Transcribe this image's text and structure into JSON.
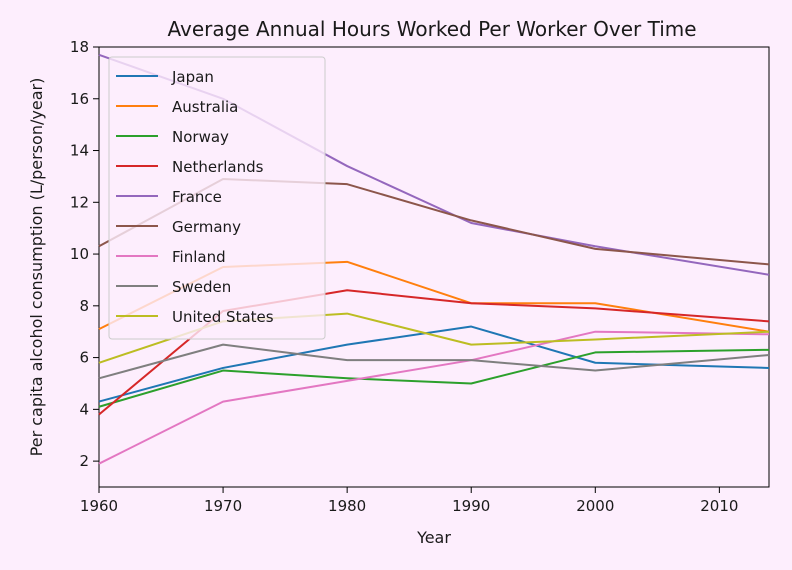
{
  "chart_data": {
    "type": "line",
    "title": "Average Annual Hours Worked Per Worker Over Time",
    "xlabel": "Year",
    "ylabel": "Per capita alcohol consumption (L/person/year)",
    "xlim": [
      1960,
      2014
    ],
    "ylim": [
      1,
      18
    ],
    "xticks": [
      1960,
      1970,
      1980,
      1990,
      2000,
      2010
    ],
    "yticks": [
      2,
      4,
      6,
      8,
      10,
      12,
      14,
      16,
      18
    ],
    "grid": false,
    "legend_position": "upper-left",
    "x": [
      1960,
      1970,
      1980,
      1990,
      2000,
      2014
    ],
    "series": [
      {
        "name": "Japan",
        "color": "#1f77b4",
        "values": [
          4.3,
          5.6,
          6.5,
          7.2,
          5.8,
          5.6
        ]
      },
      {
        "name": "Australia",
        "color": "#ff7f0e",
        "values": [
          7.1,
          9.5,
          9.7,
          8.1,
          8.1,
          7.0
        ]
      },
      {
        "name": "Norway",
        "color": "#2ca02c",
        "values": [
          4.1,
          5.5,
          5.2,
          5.0,
          6.2,
          6.3
        ]
      },
      {
        "name": "Netherlands",
        "color": "#d62728",
        "values": [
          3.8,
          7.8,
          8.6,
          8.1,
          7.9,
          7.4
        ]
      },
      {
        "name": "France",
        "color": "#9467bd",
        "values": [
          17.7,
          16.0,
          13.4,
          11.2,
          10.3,
          9.2
        ]
      },
      {
        "name": "Germany",
        "color": "#8c564b",
        "values": [
          10.3,
          12.9,
          12.7,
          11.3,
          10.2,
          9.6
        ]
      },
      {
        "name": "Finland",
        "color": "#e377c2",
        "values": [
          1.9,
          4.3,
          5.1,
          5.9,
          7.0,
          6.9
        ]
      },
      {
        "name": "Sweden",
        "color": "#7f7f7f",
        "values": [
          5.2,
          6.5,
          5.9,
          5.9,
          5.5,
          6.1
        ]
      },
      {
        "name": "United States",
        "color": "#bcbd22",
        "values": [
          5.8,
          7.4,
          7.7,
          6.5,
          6.7,
          7.0
        ]
      }
    ]
  }
}
